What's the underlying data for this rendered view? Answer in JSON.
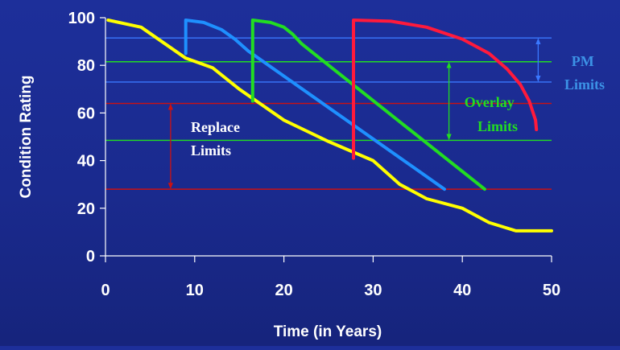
{
  "chart_data": {
    "type": "line",
    "xlabel": "Time (in Years)",
    "ylabel": "Condition Rating",
    "xlim": [
      0,
      50
    ],
    "ylim": [
      0,
      100
    ],
    "x_ticks": [
      0,
      10,
      20,
      30,
      40,
      50
    ],
    "y_ticks": [
      0,
      20,
      40,
      60,
      80,
      100
    ],
    "series": [
      {
        "color": "#ffff00",
        "points": [
          [
            0.3,
            99
          ],
          [
            4,
            96
          ],
          [
            9,
            83
          ],
          [
            12,
            79
          ],
          [
            15,
            70
          ],
          [
            20,
            57
          ],
          [
            25,
            48
          ],
          [
            30,
            40
          ],
          [
            33,
            30
          ],
          [
            36,
            24
          ],
          [
            40,
            20
          ],
          [
            43,
            14
          ],
          [
            46,
            10.5
          ],
          [
            50,
            10.5
          ]
        ]
      },
      {
        "color": "#1e90ff",
        "points": [
          [
            9,
            85
          ],
          [
            9,
            99
          ],
          [
            11,
            98
          ],
          [
            13,
            95
          ],
          [
            14.5,
            91
          ],
          [
            16,
            86
          ],
          [
            38,
            28
          ]
        ]
      },
      {
        "color": "#22dd22",
        "points": [
          [
            16.5,
            65
          ],
          [
            16.5,
            99
          ],
          [
            18.5,
            98
          ],
          [
            20,
            96
          ],
          [
            21,
            93
          ],
          [
            22,
            89
          ],
          [
            42.5,
            28
          ]
        ]
      },
      {
        "color": "#ff1a3c",
        "points": [
          [
            27.8,
            41
          ],
          [
            27.8,
            99
          ],
          [
            32,
            98.5
          ],
          [
            36,
            96
          ],
          [
            40,
            91
          ],
          [
            43,
            85
          ],
          [
            45,
            78.5
          ],
          [
            46.5,
            72
          ],
          [
            47.5,
            65
          ],
          [
            48.2,
            57
          ],
          [
            48.3,
            53
          ]
        ]
      }
    ],
    "limit_lines": [
      {
        "y": 91.5,
        "color": "#3a78ff"
      },
      {
        "y": 81.5,
        "color": "#22dd22"
      },
      {
        "y": 73,
        "color": "#3a78ff"
      },
      {
        "y": 64,
        "color": "#cc1111"
      },
      {
        "y": 48.5,
        "color": "#22dd22"
      },
      {
        "y": 28,
        "color": "#cc1111"
      }
    ],
    "range_arrows": [
      {
        "x": 48.5,
        "y_top": 91.5,
        "y_bottom": 73,
        "color": "#3a78ff"
      },
      {
        "x": 38.5,
        "y_top": 81.5,
        "y_bottom": 48.5,
        "color": "#22dd22"
      },
      {
        "x": 7.3,
        "y_top": 64,
        "y_bottom": 28,
        "color": "#cc1111"
      }
    ],
    "annotations": [
      {
        "lines": [
          "PM",
          "Limits"
        ],
        "color": "#3c92e6"
      },
      {
        "lines": [
          "Overlay",
          "Limits"
        ],
        "color": "#22dd22"
      },
      {
        "lines": [
          "Replace",
          "Limits"
        ],
        "color": "#ffffff"
      }
    ]
  }
}
